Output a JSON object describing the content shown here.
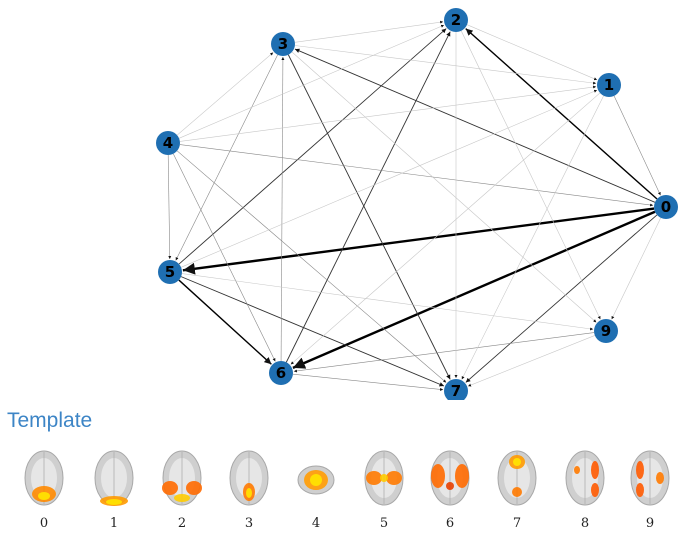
{
  "graph": {
    "nodes": [
      {
        "id": "0",
        "label": "0"
      },
      {
        "id": "1",
        "label": "1"
      },
      {
        "id": "2",
        "label": "2"
      },
      {
        "id": "3",
        "label": "3"
      },
      {
        "id": "4",
        "label": "4"
      },
      {
        "id": "5",
        "label": "5"
      },
      {
        "id": "6",
        "label": "6"
      },
      {
        "id": "7",
        "label": "7"
      },
      {
        "id": "9",
        "label": "9"
      }
    ],
    "node_color": "#1f6fb2",
    "edges": [
      {
        "source": "0",
        "target": "5",
        "weight": 3
      },
      {
        "source": "0",
        "target": "6",
        "weight": 3
      },
      {
        "source": "0",
        "target": "2",
        "weight": 2
      },
      {
        "source": "5",
        "target": "6",
        "weight": 2
      },
      {
        "source": "6",
        "target": "2",
        "weight": 1.5
      },
      {
        "source": "5",
        "target": "7",
        "weight": 1.2
      },
      {
        "source": "3",
        "target": "7",
        "weight": 1
      },
      {
        "source": "5",
        "target": "2",
        "weight": 1
      },
      {
        "source": "0",
        "target": "3",
        "weight": 1
      },
      {
        "source": "0",
        "target": "7",
        "weight": 1
      },
      {
        "source": "4",
        "target": "0",
        "weight": 0.8
      },
      {
        "source": "6",
        "target": "3",
        "weight": 0.8
      },
      {
        "source": "4",
        "target": "7",
        "weight": 0.8
      },
      {
        "source": "9",
        "target": "6",
        "weight": 0.8
      },
      {
        "source": "6",
        "target": "7",
        "weight": 0.8
      },
      {
        "source": "1",
        "target": "0",
        "weight": 0.6
      },
      {
        "source": "4",
        "target": "6",
        "weight": 0.6
      },
      {
        "source": "3",
        "target": "5",
        "weight": 0.6
      },
      {
        "source": "4",
        "target": "5",
        "weight": 0.6
      },
      {
        "source": "1",
        "target": "6",
        "weight": 0.5
      },
      {
        "source": "2",
        "target": "7",
        "weight": 0.5
      },
      {
        "source": "1",
        "target": "7",
        "weight": 0.5
      },
      {
        "source": "3",
        "target": "1",
        "weight": 0.4
      },
      {
        "source": "3",
        "target": "2",
        "weight": 0.4
      },
      {
        "source": "4",
        "target": "2",
        "weight": 0.4
      },
      {
        "source": "4",
        "target": "3",
        "weight": 0.4
      },
      {
        "source": "4",
        "target": "1",
        "weight": 0.4
      },
      {
        "source": "5",
        "target": "1",
        "weight": 0.4
      },
      {
        "source": "5",
        "target": "9",
        "weight": 0.4
      },
      {
        "source": "9",
        "target": "7",
        "weight": 0.4
      },
      {
        "source": "2",
        "target": "1",
        "weight": 0.4
      },
      {
        "source": "0",
        "target": "9",
        "weight": 0.4
      },
      {
        "source": "3",
        "target": "9",
        "weight": 0.3
      },
      {
        "source": "2",
        "target": "9",
        "weight": 0.3
      }
    ]
  },
  "template": {
    "heading": "Template",
    "brains": [
      {
        "label": "0",
        "pattern": "occipital"
      },
      {
        "label": "1",
        "pattern": "occipital-pole"
      },
      {
        "label": "2",
        "pattern": "lateral-occipital"
      },
      {
        "label": "3",
        "pattern": "medial-parietal"
      },
      {
        "label": "4",
        "pattern": "cerebellum"
      },
      {
        "label": "5",
        "pattern": "sensorimotor"
      },
      {
        "label": "6",
        "pattern": "insular"
      },
      {
        "label": "7",
        "pattern": "default-mode"
      },
      {
        "label": "8",
        "pattern": "frontoparietal-right"
      },
      {
        "label": "9",
        "pattern": "frontoparietal-left"
      }
    ]
  }
}
